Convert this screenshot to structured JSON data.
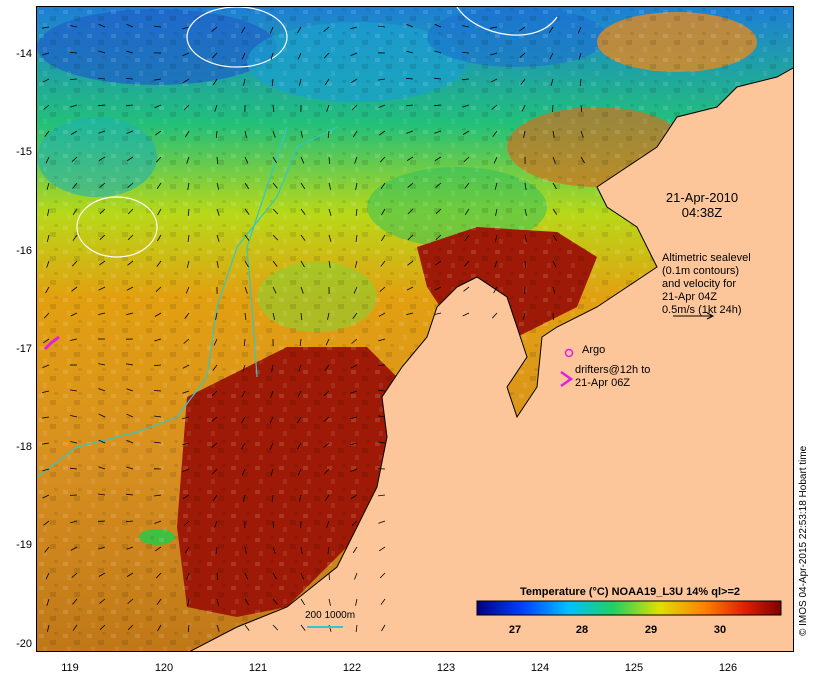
{
  "map": {
    "lat_ticks": [
      "-14",
      "-15",
      "-16",
      "-17",
      "-18",
      "-19",
      "-20"
    ],
    "lon_ticks": [
      "119",
      "120",
      "121",
      "122",
      "123",
      "124",
      "125",
      "126"
    ],
    "date": "21-Apr-2010",
    "time": "04:38Z",
    "altimetry_lines": [
      "Altimetric sealevel",
      "(0.1m contours)",
      "and velocity for",
      "21-Apr 04Z",
      "0.5m/s (1kt 24h)"
    ],
    "argo_label": "Argo",
    "drifter_lines": [
      "drifters@12h to",
      "21-Apr 06Z"
    ],
    "scale_label": "200  1000m",
    "colorbar_title": "Temperature (°C) NOAA19_L3U 14% ql>=2",
    "colorbar_ticks": [
      "27",
      "28",
      "29",
      "30"
    ],
    "credit": "© IMOS 04-Apr-2015 22:53:18 Hobart time",
    "colors": {
      "land": "#fcc69a",
      "warm": "#9e1a06",
      "argo": "#e020e0",
      "contour": "#ffffff",
      "isobath": "#30c8c8"
    }
  }
}
